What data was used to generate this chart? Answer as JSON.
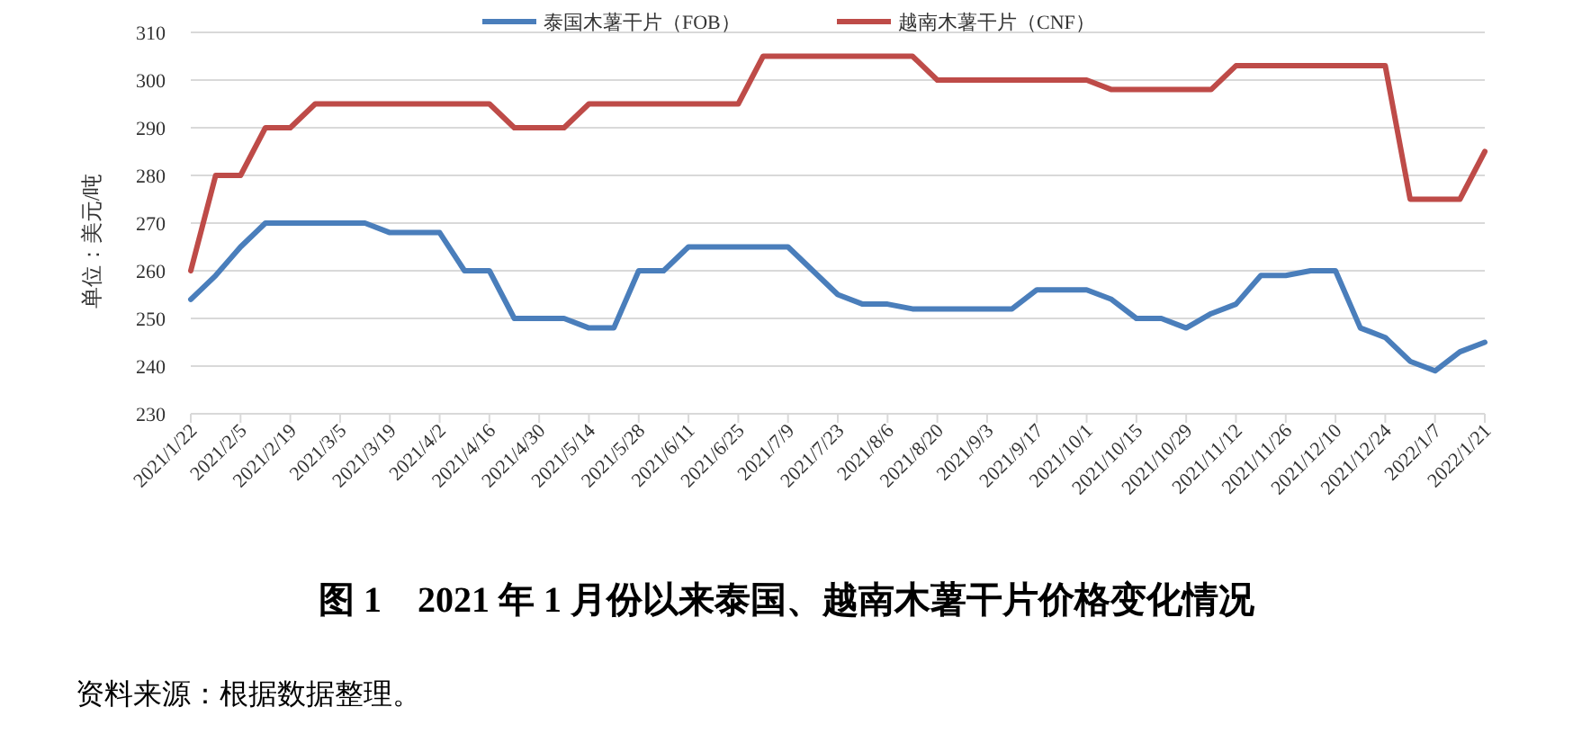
{
  "chart_data": {
    "type": "line",
    "title": "图 1　2021 年 1 月份以来泰国、越南木薯干片价格变化情况",
    "ylabel": "单位：美元/吨",
    "annotations": [
      "资料来源：根据数据整理。"
    ],
    "categories": [
      "2021/1/22",
      null,
      "2021/2/5",
      null,
      "2021/2/19",
      null,
      "2021/3/5",
      null,
      "2021/3/19",
      null,
      "2021/4/2",
      null,
      "2021/4/16",
      null,
      "2021/4/30",
      null,
      "2021/5/14",
      null,
      "2021/5/28",
      null,
      "2021/6/11",
      null,
      "2021/6/25",
      null,
      "2021/7/9",
      null,
      "2021/7/23",
      null,
      "2021/8/6",
      null,
      "2021/8/20",
      null,
      "2021/9/3",
      null,
      "2021/9/17",
      null,
      "2021/10/1",
      null,
      "2021/10/15",
      null,
      "2021/10/29",
      null,
      "2021/11/12",
      null,
      "2021/11/26",
      null,
      "2021/12/10",
      null,
      "2021/12/24",
      null,
      "2022/1/7",
      null,
      "2022/1/21"
    ],
    "series": [
      {
        "name": "泰国木薯干片（FOB）",
        "color": "#4a7ebb",
        "values": [
          254,
          259,
          265,
          270,
          270,
          270,
          270,
          270,
          268,
          268,
          268,
          260,
          260,
          250,
          250,
          250,
          248,
          248,
          260,
          260,
          265,
          265,
          265,
          265,
          265,
          260,
          255,
          253,
          253,
          252,
          252,
          252,
          252,
          252,
          256,
          256,
          256,
          254,
          250,
          250,
          248,
          251,
          253,
          259,
          259,
          260,
          260,
          248,
          246,
          241,
          239,
          243,
          245
        ]
      },
      {
        "name": "越南木薯干片（CNF）",
        "color": "#be4b48",
        "values": [
          260,
          280,
          280,
          290,
          290,
          295,
          295,
          295,
          295,
          295,
          295,
          295,
          295,
          290,
          290,
          290,
          295,
          295,
          295,
          295,
          295,
          295,
          295,
          305,
          305,
          305,
          305,
          305,
          305,
          305,
          300,
          300,
          300,
          300,
          300,
          300,
          300,
          298,
          298,
          298,
          298,
          298,
          303,
          303,
          303,
          303,
          303,
          303,
          303,
          275,
          275,
          275,
          285
        ]
      }
    ],
    "ylim": [
      230,
      310
    ],
    "yticks": [
      230,
      240,
      250,
      260,
      270,
      280,
      290,
      300,
      310
    ],
    "grid": "y",
    "legend": "top",
    "marker": "none",
    "line_style": "solid"
  }
}
